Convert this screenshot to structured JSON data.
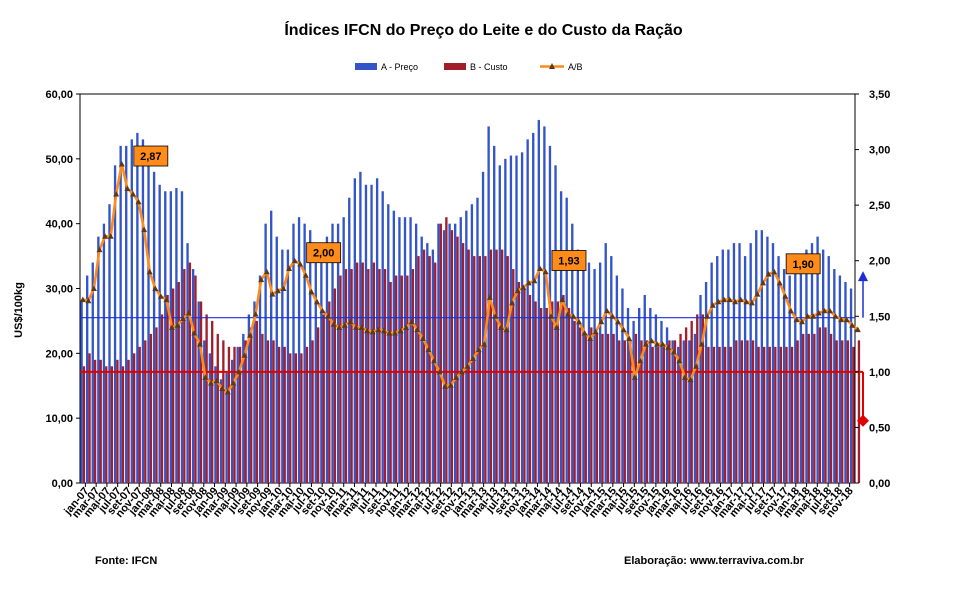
{
  "chart_data": {
    "type": "bar",
    "title": "Índices IFCN do Preço do Leite e do Custo da Ração",
    "ylabel": "US$/100kg",
    "ylim": [
      0,
      60
    ],
    "y2lim": [
      0,
      3.5
    ],
    "y_ticks": [
      "0,00",
      "10,00",
      "20,00",
      "30,00",
      "40,00",
      "50,00",
      "60,00"
    ],
    "y2_ticks": [
      "0,00",
      "0,50",
      "1,00",
      "1,50",
      "2,00",
      "2,50",
      "3,00",
      "3,50"
    ],
    "legend": {
      "placement": "top",
      "items": [
        "A - Preço",
        "B - Custo",
        "A/B"
      ]
    },
    "colors": {
      "preco": "#3355c8",
      "custo": "#a01f2b",
      "ratio": "#ff8c1a",
      "ratio_marker": "#5a3a1a",
      "callout_bg": "#ff8c1a",
      "hline_price": "#1b2fd6",
      "hline_cost": "#e00000",
      "arrow_up": "#1b2fd6",
      "arrow_down": "#e00000"
    },
    "x_tick_labels": [
      "jan-07",
      "mar-07",
      "mai-07",
      "jul-07",
      "set-07",
      "nov-07",
      "jan-08",
      "mar-08",
      "mai-08",
      "jul-08",
      "set-08",
      "nov-08",
      "jan-09",
      "mar-09",
      "mai-09",
      "jul-09",
      "set-09",
      "nov-09",
      "jan-10",
      "mar-10",
      "mai-10",
      "jul-10",
      "set-10",
      "nov-10",
      "jan-11",
      "mar-11",
      "mai-11",
      "jul-11",
      "set-11",
      "nov-11",
      "jan-12",
      "mar-12",
      "mai-12",
      "jul-12",
      "set-12",
      "nov-12",
      "jan-13",
      "mar-13",
      "mai-13",
      "jul-13",
      "set-13",
      "nov-13",
      "jan-14",
      "mar-14",
      "mai-14",
      "jul-14",
      "set-14",
      "nov-14",
      "jan-15",
      "mar-15",
      "mai-15",
      "jul-15",
      "set-15",
      "nov-15",
      "jan-16",
      "mar-16",
      "mai-16",
      "jul-16",
      "set-16",
      "nov-16",
      "jan-17",
      "mar-17",
      "mai-17",
      "jul-17",
      "set-17",
      "nov-17",
      "jan-18",
      "mar-18",
      "mai-18",
      "jul-18",
      "set-18",
      "nov-18"
    ],
    "series": [
      {
        "name": "A - Preço",
        "axis": "left",
        "values": [
          28,
          32,
          34,
          38,
          40,
          43,
          49,
          52,
          52,
          53,
          54,
          53,
          50,
          48,
          46,
          45,
          45,
          45.5,
          45,
          37,
          33,
          28,
          22,
          20,
          18,
          16,
          17,
          19,
          21,
          23,
          26,
          28,
          32,
          40,
          42,
          38,
          36,
          36,
          40,
          41,
          40,
          39,
          37,
          37,
          38,
          40,
          40,
          41,
          44,
          47,
          48,
          46,
          46,
          47,
          45,
          43,
          42,
          41,
          41,
          41,
          40,
          38,
          37,
          36,
          40,
          39,
          40,
          40,
          41,
          42,
          43,
          44,
          48,
          55,
          52,
          49,
          50,
          50.5,
          50.5,
          51,
          53,
          54,
          56,
          55,
          52,
          49,
          45,
          44,
          40,
          36,
          35,
          34,
          33,
          34,
          37,
          35,
          32,
          30,
          27,
          25,
          27,
          29,
          27,
          26,
          25,
          24,
          22,
          21,
          22,
          22,
          23,
          29,
          31,
          34,
          35,
          36,
          36,
          37,
          37,
          35,
          37,
          39,
          39,
          38,
          37,
          35,
          33,
          32,
          33,
          35,
          36,
          37,
          38,
          36,
          35,
          33,
          32,
          31,
          30
        ]
      },
      {
        "name": "B - Custo",
        "axis": "left",
        "values": [
          18,
          20,
          19,
          19,
          18,
          18,
          19,
          18,
          19,
          20,
          21,
          22,
          23,
          24,
          26,
          29,
          30,
          31,
          33,
          34,
          32,
          28,
          26,
          25,
          23,
          22,
          21,
          21,
          21,
          22,
          24,
          25,
          23,
          22,
          22,
          21,
          21,
          20,
          20,
          20,
          21,
          22,
          24,
          26,
          28,
          30,
          32,
          33,
          33,
          34,
          34,
          33,
          34,
          33,
          33,
          31,
          32,
          32,
          32,
          33,
          35,
          36,
          35,
          34,
          40,
          41,
          39,
          38,
          37,
          36,
          35,
          35,
          35,
          36,
          36,
          36,
          35,
          33,
          31,
          30,
          29,
          28,
          27,
          27,
          28,
          28,
          29,
          27,
          25,
          24,
          23,
          24,
          23,
          23,
          23,
          23,
          22,
          22,
          22,
          23,
          22,
          22,
          21,
          21,
          21,
          22,
          22,
          23,
          24,
          25,
          26,
          26,
          21,
          21,
          21,
          21,
          21,
          22,
          22,
          22,
          22,
          21,
          21,
          21,
          21,
          21,
          21,
          21,
          22,
          23,
          23,
          23,
          24,
          24,
          23,
          22,
          22,
          22,
          21,
          22
        ]
      },
      {
        "name": "A/B",
        "axis": "right",
        "values": [
          1.65,
          1.64,
          1.75,
          2.1,
          2.22,
          2.22,
          2.6,
          2.87,
          2.65,
          2.6,
          2.53,
          2.28,
          1.9,
          1.75,
          1.68,
          1.65,
          1.4,
          1.42,
          1.48,
          1.53,
          1.35,
          1.25,
          0.95,
          0.9,
          0.92,
          0.85,
          0.82,
          0.9,
          1.0,
          1.15,
          1.33,
          1.52,
          1.83,
          1.9,
          1.7,
          1.73,
          1.75,
          1.93,
          2.0,
          1.97,
          1.87,
          1.72,
          1.63,
          1.55,
          1.5,
          1.43,
          1.4,
          1.42,
          1.45,
          1.4,
          1.4,
          1.37,
          1.36,
          1.38,
          1.37,
          1.35,
          1.35,
          1.37,
          1.4,
          1.45,
          1.38,
          1.3,
          1.2,
          1.1,
          1.0,
          0.87,
          0.88,
          0.95,
          1.0,
          1.05,
          1.12,
          1.2,
          1.25,
          1.67,
          1.5,
          1.4,
          1.38,
          1.62,
          1.73,
          1.76,
          1.8,
          1.82,
          1.93,
          1.9,
          1.5,
          1.4,
          1.65,
          1.52,
          1.5,
          1.45,
          1.35,
          1.3,
          1.36,
          1.45,
          1.55,
          1.5,
          1.45,
          1.38,
          1.3,
          0.95,
          1.1,
          1.25,
          1.28,
          1.25,
          1.25,
          1.22,
          1.18,
          1.1,
          0.95,
          0.93,
          1.05,
          1.25,
          1.5,
          1.6,
          1.63,
          1.65,
          1.65,
          1.63,
          1.65,
          1.63,
          1.62,
          1.7,
          1.8,
          1.88,
          1.9,
          1.8,
          1.68,
          1.55,
          1.47,
          1.45,
          1.5,
          1.5,
          1.53,
          1.55,
          1.55,
          1.5,
          1.47,
          1.47,
          1.42,
          1.38
        ]
      }
    ],
    "reference_lines": [
      {
        "axis": "left",
        "value": 25.5
      },
      {
        "axis": "right",
        "value": 1.0
      }
    ],
    "end_markers": [
      {
        "axis": "right",
        "value": 1.87,
        "direction": "up"
      },
      {
        "axis": "right",
        "value": 0.56,
        "direction": "down"
      }
    ],
    "callouts": [
      {
        "label": "2,87",
        "index": 7
      },
      {
        "label": "2,00",
        "index": 38
      },
      {
        "label": "1,93",
        "index": 82
      },
      {
        "label": "1,90",
        "index": 124
      }
    ]
  },
  "source_label": "Fonte: IFCN",
  "credit_label": "Elaboração:  www.terraviva.com.br"
}
